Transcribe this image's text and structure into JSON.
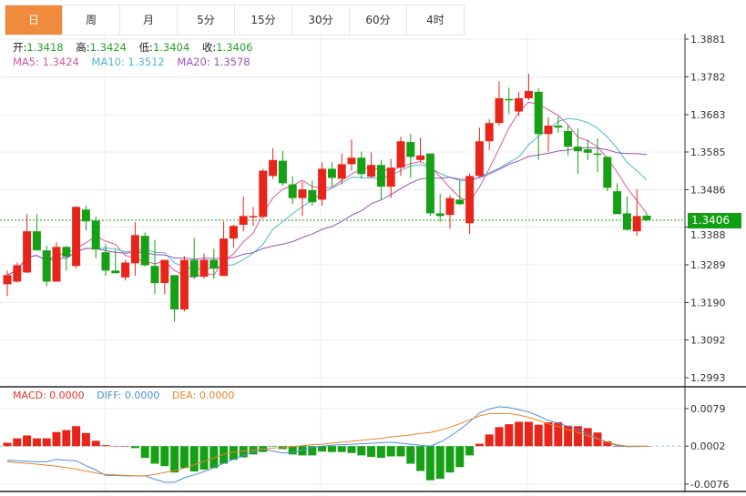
{
  "tabs": [
    {
      "label": "日",
      "active": true
    },
    {
      "label": "周"
    },
    {
      "label": "月"
    },
    {
      "label": "5分"
    },
    {
      "label": "15分"
    },
    {
      "label": "30分"
    },
    {
      "label": "60分"
    },
    {
      "label": "4时"
    }
  ],
  "ohlc_info": {
    "open_label": "开:",
    "open": "1.3418",
    "high_label": "高:",
    "high": "1.3424",
    "low_label": "低:",
    "low": "1.3404",
    "close_label": "收:",
    "close": "1.3406"
  },
  "ma_info": {
    "ma5": "MA5: 1.3424",
    "ma10": "MA10: 1.3512",
    "ma20": "MA20: 1.3578"
  },
  "macd_info": {
    "macd": "MACD: 0.0000",
    "diff": "DIFF: 0.0000",
    "dea": "DEA: 0.0000"
  },
  "current_price": "1.3406",
  "colors": {
    "up": "#e8251a",
    "down": "#15a015",
    "accent_tab": "#f08a3c",
    "ma5": "#d9579c",
    "ma10": "#4cb8d0",
    "ma20": "#9b52b8",
    "diff": "#4a90d9",
    "dea": "#e8842a"
  },
  "chart_data": [
    {
      "type": "candlestick",
      "price_ticks": [
        "1.3881",
        "1.3782",
        "1.3683",
        "1.3585",
        "1.3486",
        "1.3388",
        "1.3289",
        "1.3190",
        "1.3092",
        "1.2993"
      ],
      "ylim": [
        1.2993,
        1.3881
      ],
      "grid": true,
      "candles_ohlc": [
        [
          1.3238,
          1.3274,
          1.3207,
          1.3262
        ],
        [
          1.3245,
          1.3295,
          1.3243,
          1.3288
        ],
        [
          1.3269,
          1.3422,
          1.3267,
          1.3377
        ],
        [
          1.3377,
          1.3422,
          1.3327,
          1.3327
        ],
        [
          1.3327,
          1.3339,
          1.3233,
          1.3245
        ],
        [
          1.3245,
          1.3348,
          1.3245,
          1.3336
        ],
        [
          1.3336,
          1.3339,
          1.3274,
          1.331
        ],
        [
          1.3286,
          1.3443,
          1.3279,
          1.3441
        ],
        [
          1.3434,
          1.3444,
          1.3379,
          1.3403
        ],
        [
          1.3405,
          1.3415,
          1.3307,
          1.3329
        ],
        [
          1.3322,
          1.3343,
          1.326,
          1.3274
        ],
        [
          1.3274,
          1.3329,
          1.3267,
          1.3267
        ],
        [
          1.3256,
          1.3302,
          1.3248,
          1.3295
        ],
        [
          1.3293,
          1.3401,
          1.326,
          1.3367
        ],
        [
          1.3365,
          1.3374,
          1.3284,
          1.3288
        ],
        [
          1.3286,
          1.3355,
          1.3212,
          1.3241
        ],
        [
          1.3241,
          1.3302,
          1.3212,
          1.3302
        ],
        [
          1.3262,
          1.3262,
          1.314,
          1.3172
        ],
        [
          1.3172,
          1.3312,
          1.3167,
          1.3302
        ],
        [
          1.3302,
          1.336,
          1.3253,
          1.3258
        ],
        [
          1.3258,
          1.3319,
          1.3253,
          1.3302
        ],
        [
          1.3302,
          1.3331,
          1.3253,
          1.3279
        ],
        [
          1.326,
          1.3403,
          1.326,
          1.3358
        ],
        [
          1.3358,
          1.3394,
          1.3334,
          1.3391
        ],
        [
          1.3394,
          1.3468,
          1.3377,
          1.3417
        ],
        [
          1.3415,
          1.3441,
          1.3391,
          1.3417
        ],
        [
          1.3415,
          1.3541,
          1.341,
          1.3536
        ],
        [
          1.3522,
          1.3595,
          1.3515,
          1.3564
        ],
        [
          1.3562,
          1.3588,
          1.3496,
          1.3503
        ],
        [
          1.35,
          1.3522,
          1.3448,
          1.3464
        ],
        [
          1.3464,
          1.3507,
          1.3417,
          1.3487
        ],
        [
          1.3485,
          1.351,
          1.3444,
          1.3453
        ],
        [
          1.346,
          1.3558,
          1.3444,
          1.3541
        ],
        [
          1.3541,
          1.3558,
          1.3494,
          1.3517
        ],
        [
          1.3515,
          1.3581,
          1.35,
          1.3553
        ],
        [
          1.3553,
          1.3618,
          1.3536,
          1.357
        ],
        [
          1.357,
          1.3586,
          1.3515,
          1.3527
        ],
        [
          1.352,
          1.3584,
          1.3517,
          1.3551
        ],
        [
          1.3551,
          1.3565,
          1.346,
          1.3494
        ],
        [
          1.3494,
          1.3567,
          1.3464,
          1.3544
        ],
        [
          1.3544,
          1.3625,
          1.3522,
          1.3613
        ],
        [
          1.3611,
          1.3632,
          1.3517,
          1.3572
        ],
        [
          1.3564,
          1.3623,
          1.3558,
          1.3576
        ],
        [
          1.3581,
          1.3581,
          1.3417,
          1.3424
        ],
        [
          1.3424,
          1.3475,
          1.3403,
          1.3417
        ],
        [
          1.342,
          1.3472,
          1.3384,
          1.3464
        ],
        [
          1.346,
          1.351,
          1.3446,
          1.3448
        ],
        [
          1.3398,
          1.3529,
          1.337,
          1.3522
        ],
        [
          1.3522,
          1.3649,
          1.352,
          1.3613
        ],
        [
          1.3613,
          1.3671,
          1.359,
          1.3661
        ],
        [
          1.3661,
          1.3771,
          1.3654,
          1.3726
        ],
        [
          1.3724,
          1.3754,
          1.3685,
          1.3721
        ],
        [
          1.3691,
          1.3743,
          1.3679,
          1.3726
        ],
        [
          1.3726,
          1.379,
          1.3721,
          1.3745
        ],
        [
          1.3743,
          1.3752,
          1.3564,
          1.3632
        ],
        [
          1.3632,
          1.3676,
          1.3586,
          1.3654
        ],
        [
          1.3654,
          1.3678,
          1.3635,
          1.3649
        ],
        [
          1.364,
          1.3656,
          1.3576,
          1.3599
        ],
        [
          1.3599,
          1.3647,
          1.3527,
          1.3587
        ],
        [
          1.3592,
          1.3618,
          1.3564,
          1.3583
        ],
        [
          1.3581,
          1.3621,
          1.3532,
          1.3578
        ],
        [
          1.3572,
          1.3574,
          1.3482,
          1.3491
        ],
        [
          1.3482,
          1.3503,
          1.3422,
          1.3422
        ],
        [
          1.3424,
          1.3468,
          1.3379,
          1.3381
        ],
        [
          1.3377,
          1.3487,
          1.3365,
          1.3417
        ],
        [
          1.3418,
          1.3424,
          1.3404,
          1.3406
        ]
      ],
      "ma_periods": [
        5,
        10,
        20
      ]
    },
    {
      "type": "bar+line",
      "ticks": [
        "0.0079",
        "0.0002",
        "-0.0076"
      ],
      "ylim": [
        -0.0076,
        0.0079
      ],
      "macd": [
        0.0007,
        0.0016,
        0.0022,
        0.0016,
        0.0016,
        0.0029,
        0.0033,
        0.0041,
        0.0027,
        0.0011,
        0.0002,
        0,
        0,
        -0.0004,
        -0.0024,
        -0.0036,
        -0.0041,
        -0.0054,
        -0.0045,
        -0.0052,
        -0.0048,
        -0.0045,
        -0.0036,
        -0.0028,
        -0.0023,
        -0.0017,
        -0.0012,
        -0.0001,
        -0.0006,
        -0.0017,
        -0.0019,
        -0.0019,
        -0.0011,
        -0.0012,
        -0.0012,
        -0.0014,
        -0.0019,
        -0.0022,
        -0.0024,
        -0.0021,
        -0.0021,
        -0.0036,
        -0.0051,
        -0.007,
        -0.0067,
        -0.0054,
        -0.0043,
        -0.0019,
        0.0005,
        0.0024,
        0.0039,
        0.0045,
        0.005,
        0.005,
        0.0044,
        0.0049,
        0.0049,
        0.0042,
        0.0041,
        0.0037,
        0.0028,
        0.001,
        0,
        -0.0001,
        0,
        0
      ],
      "diff": [
        -0.0029,
        -0.003,
        -0.0031,
        -0.0032,
        -0.0032,
        -0.0027,
        -0.0029,
        -0.003,
        -0.004,
        -0.0049,
        -0.006,
        -0.006,
        -0.0061,
        -0.0061,
        -0.0061,
        -0.0068,
        -0.0074,
        -0.0074,
        -0.0065,
        -0.0059,
        -0.0052,
        -0.0044,
        -0.0035,
        -0.0027,
        -0.0019,
        -0.0012,
        -0.0006,
        -0.001,
        -0.0014,
        -0.0013,
        -0.0008,
        -0.0003,
        0.0,
        0.0002,
        0.0003,
        0.0004,
        0.0005,
        0.0006,
        0.0007,
        0.0008,
        0.0006,
        0.0004,
        0.0002,
        0.0,
        0.0008,
        0.002,
        0.0034,
        0.005,
        0.0068,
        0.0076,
        0.0081,
        0.0079,
        0.0075,
        0.007,
        0.0062,
        0.0053,
        0.0047,
        0.0041,
        0.0034,
        0.0026,
        0.0016,
        0.0008,
        0.0001,
        -0.0001,
        -0.0001,
        0.0
      ],
      "dea": [
        -0.0032,
        -0.0034,
        -0.0035,
        -0.0037,
        -0.0039,
        -0.0041,
        -0.0044,
        -0.0047,
        -0.0051,
        -0.0055,
        -0.0058,
        -0.0059,
        -0.006,
        -0.0061,
        -0.0061,
        -0.0058,
        -0.0054,
        -0.005,
        -0.0045,
        -0.0038,
        -0.0031,
        -0.0024,
        -0.0017,
        -0.0012,
        -0.001,
        -0.0008,
        -0.0006,
        -0.0004,
        -0.0003,
        -0.0001,
        0.0001,
        0.0003,
        0.0004,
        0.0006,
        0.0008,
        0.001,
        0.0012,
        0.0014,
        0.0016,
        0.0019,
        0.0021,
        0.0023,
        0.0026,
        0.0028,
        0.0033,
        0.0039,
        0.0046,
        0.0054,
        0.0062,
        0.0067,
        0.0067,
        0.0067,
        0.0064,
        0.0059,
        0.0053,
        0.0046,
        0.004,
        0.0034,
        0.0028,
        0.0021,
        0.0015,
        0.0008,
        0.0003,
        0.0,
        0.0,
        0.0
      ]
    }
  ]
}
